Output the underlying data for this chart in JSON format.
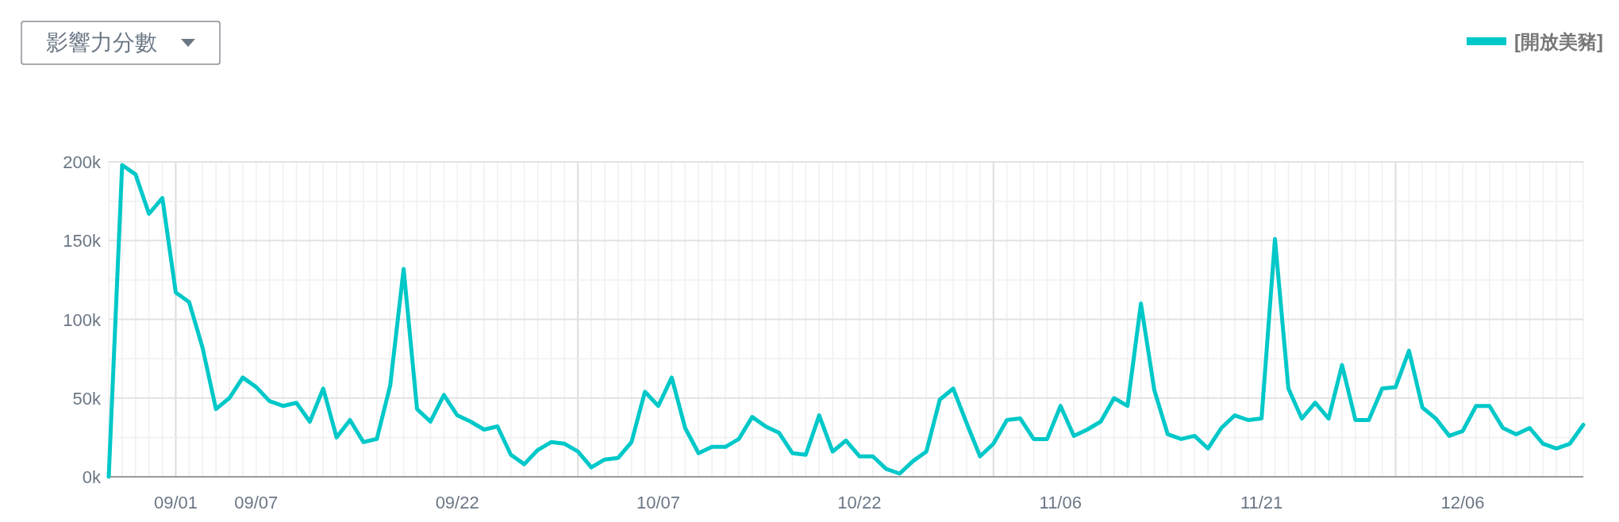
{
  "chart_data": {
    "type": "line",
    "title": "影響力分數",
    "x": [
      "--08-27",
      "--08-28",
      "--08-29",
      "--08-30",
      "--08-31",
      "--09-01",
      "--09-02",
      "--09-03",
      "--09-04",
      "--09-05",
      "--09-06",
      "--09-07",
      "--09-08",
      "--09-09",
      "--09-10",
      "--09-11",
      "--09-12",
      "--09-13",
      "--09-14",
      "--09-15",
      "--09-16",
      "--09-17",
      "--09-18",
      "--09-19",
      "--09-20",
      "--09-21",
      "--09-22",
      "--09-23",
      "--09-24",
      "--09-25",
      "--09-26",
      "--09-27",
      "--09-28",
      "--09-29",
      "--09-30",
      "--10-01",
      "--10-02",
      "--10-03",
      "--10-04",
      "--10-05",
      "--10-06",
      "--10-07",
      "--10-08",
      "--10-09",
      "--10-10",
      "--10-11",
      "--10-12",
      "--10-13",
      "--10-14",
      "--10-15",
      "--10-16",
      "--10-17",
      "--10-18",
      "--10-19",
      "--10-20",
      "--10-21",
      "--10-22",
      "--10-23",
      "--10-24",
      "--10-25",
      "--10-26",
      "--10-27",
      "--10-28",
      "--10-29",
      "--10-30",
      "--10-31",
      "--11-01",
      "--11-02",
      "--11-03",
      "--11-04",
      "--11-05",
      "--11-06",
      "--11-07",
      "--11-08",
      "--11-09",
      "--11-10",
      "--11-11",
      "--11-12",
      "--11-13",
      "--11-14",
      "--11-15",
      "--11-16",
      "--11-17",
      "--11-18",
      "--11-19",
      "--11-20",
      "--11-21",
      "--11-22",
      "--11-23",
      "--11-24",
      "--11-25",
      "--11-26",
      "--11-27",
      "--11-28",
      "--11-29",
      "--11-30",
      "--12-01",
      "--12-02",
      "--12-03",
      "--12-04",
      "--12-05",
      "--12-06",
      "--12-07",
      "--12-08",
      "--12-09",
      "--12-10",
      "--12-11",
      "--12-12",
      "--12-13",
      "--12-14",
      "--12-15"
    ],
    "series": [
      {
        "name": "[開放美豬]",
        "color": "#00c8c8",
        "values": [
          0,
          198000,
          192000,
          167000,
          177000,
          117000,
          111000,
          82000,
          43000,
          50000,
          63000,
          57000,
          48000,
          45000,
          47000,
          35000,
          56000,
          25000,
          36000,
          22000,
          24000,
          58000,
          132000,
          43000,
          35000,
          52000,
          39000,
          35000,
          30000,
          32000,
          14000,
          8000,
          17000,
          22000,
          21000,
          16000,
          6000,
          11000,
          12000,
          22000,
          54000,
          45000,
          63000,
          31000,
          15000,
          19000,
          19000,
          24000,
          38000,
          32000,
          28000,
          15000,
          14000,
          39000,
          16000,
          23000,
          13000,
          13000,
          5000,
          2000,
          10000,
          16000,
          49000,
          56000,
          34000,
          13000,
          21000,
          36000,
          37000,
          24000,
          24000,
          45000,
          26000,
          30000,
          35000,
          50000,
          45000,
          110000,
          55000,
          27000,
          24000,
          26000,
          18000,
          31000,
          39000,
          36000,
          37000,
          151000,
          56000,
          37000,
          47000,
          37000,
          71000,
          36000,
          36000,
          56000,
          57000,
          80000,
          44000,
          37000,
          26000,
          29000,
          45000,
          45000,
          31000,
          27000,
          31000,
          21000,
          18000,
          21000,
          33000
        ]
      }
    ],
    "xlim": [
      "--08-27",
      "--12-15"
    ],
    "xticks": [
      {
        "value": "--09-01",
        "label": "09/01"
      },
      {
        "value": "--09-07",
        "label": "09/07"
      },
      {
        "value": "--09-22",
        "label": "09/22"
      },
      {
        "value": "--10-07",
        "label": "10/07"
      },
      {
        "value": "--10-22",
        "label": "10/22"
      },
      {
        "value": "--11-06",
        "label": "11/06"
      },
      {
        "value": "--11-21",
        "label": "11/21"
      },
      {
        "value": "--12-06",
        "label": "12/06"
      }
    ],
    "ylim": [
      0,
      200000
    ],
    "yticks": [
      {
        "value": 0,
        "label": "0k"
      },
      {
        "value": 50000,
        "label": "50k"
      },
      {
        "value": 100000,
        "label": "100k"
      },
      {
        "value": 150000,
        "label": "150k"
      },
      {
        "value": 200000,
        "label": "200k"
      }
    ],
    "grid": true,
    "legend": "top right",
    "marker": "none",
    "line_style": "solid"
  }
}
